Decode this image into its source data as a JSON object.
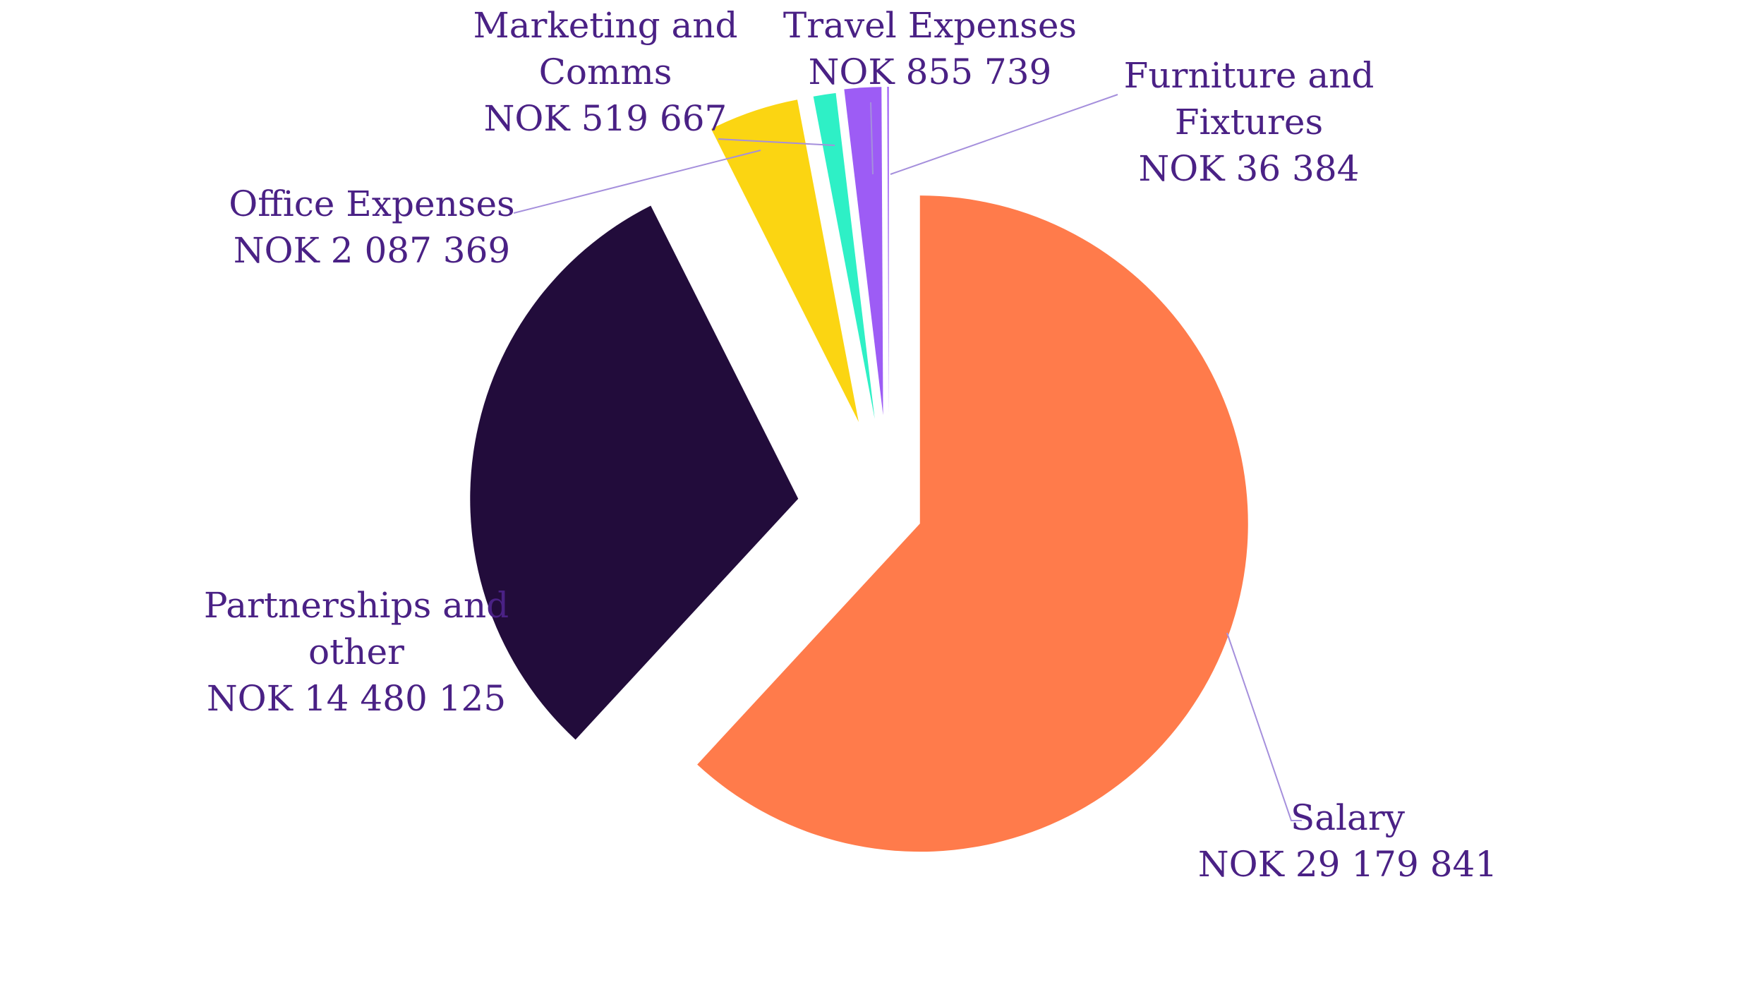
{
  "chart_data": {
    "type": "pie",
    "currency": "NOK",
    "exploded": true,
    "label_color": "#4a2185",
    "leader_line_color": "#a58fdc",
    "slices": [
      {
        "label_lines": [
          "Salary"
        ],
        "value_text": "NOK 29 179 841",
        "value": 29179841,
        "color": "#ff7b4b"
      },
      {
        "label_lines": [
          "Partnerships and",
          "other"
        ],
        "value_text": "NOK 14 480 125",
        "value": 14480125,
        "color": "#220c3b"
      },
      {
        "label_lines": [
          "Office Expenses"
        ],
        "value_text": "NOK 2 087 369",
        "value": 2087369,
        "color": "#fbd512"
      },
      {
        "label_lines": [
          "Marketing and",
          "Comms"
        ],
        "value_text": "NOK 519 667",
        "value": 519667,
        "color": "#2ef0c6"
      },
      {
        "label_lines": [
          "Travel Expenses"
        ],
        "value_text": "NOK 855 739",
        "value": 855739,
        "color": "#9d5cf5"
      },
      {
        "label_lines": [
          "Furniture and",
          "Fixtures"
        ],
        "value_text": "NOK 36 384",
        "value": 36384,
        "color": "#9d5cf5"
      }
    ]
  }
}
